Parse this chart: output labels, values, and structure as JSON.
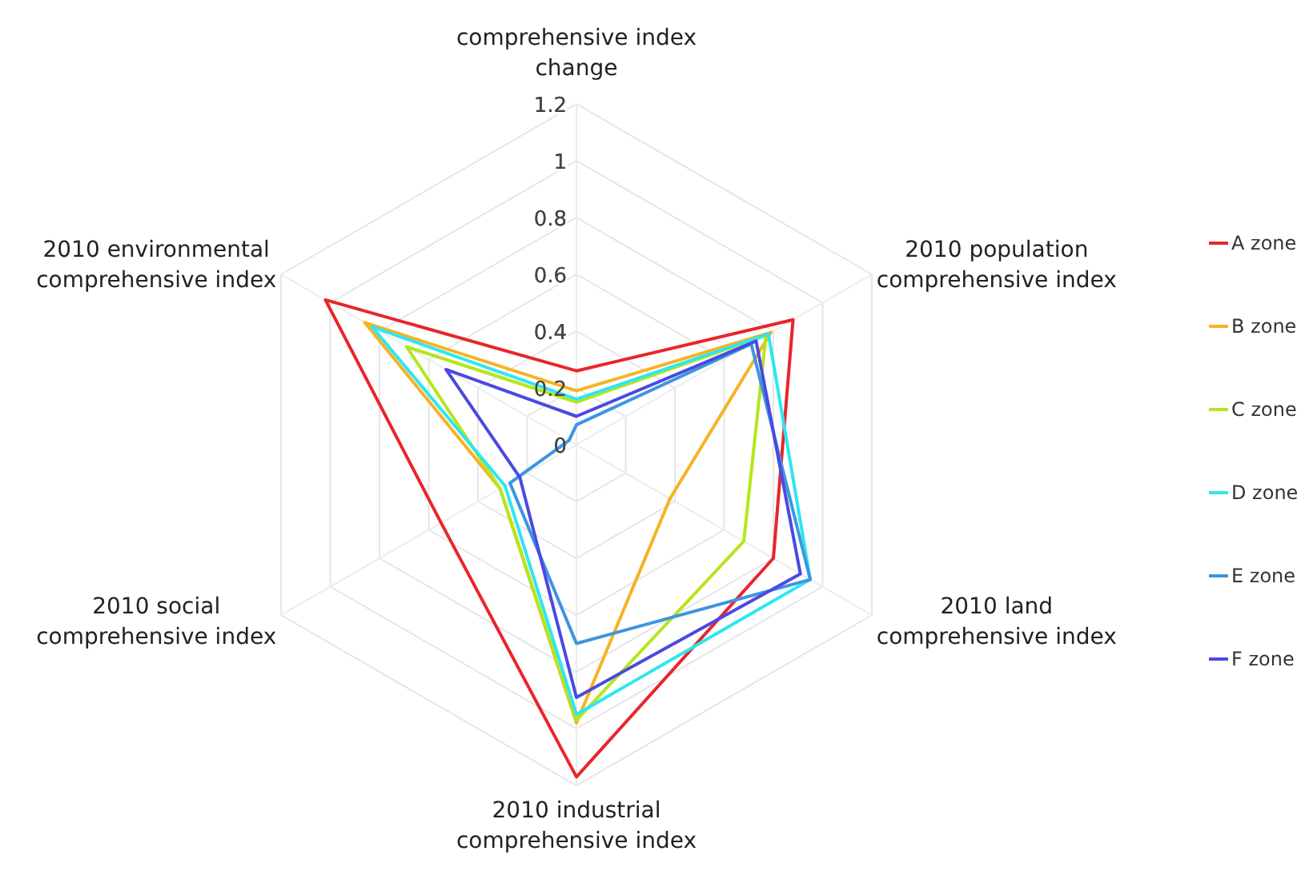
{
  "chart_data": {
    "type": "radar",
    "categories": [
      "comprehensive index\nchange",
      "2010 population\ncomprehensive index",
      "2010 land\ncomprehensive index",
      "2010 industrial\ncomprehensive index",
      "2010 social\ncomprehensive index",
      "2010 environmental\ncomprehensive index"
    ],
    "series": [
      {
        "name": "A zone",
        "color": "#e8262a",
        "values": [
          0.26,
          0.88,
          0.8,
          1.17,
          0.55,
          1.02
        ]
      },
      {
        "name": "B zone",
        "color": "#f5b324",
        "values": [
          0.19,
          0.79,
          0.38,
          0.98,
          0.31,
          0.86
        ]
      },
      {
        "name": "C zone",
        "color": "#b5e61d",
        "values": [
          0.15,
          0.77,
          0.68,
          0.97,
          0.31,
          0.69
        ]
      },
      {
        "name": "D zone",
        "color": "#2ee6f0",
        "values": [
          0.16,
          0.78,
          0.95,
          0.95,
          0.29,
          0.83
        ]
      },
      {
        "name": "E zone",
        "color": "#3d95e0",
        "values": [
          0.07,
          0.71,
          0.95,
          0.7,
          0.27,
          0.03
        ]
      },
      {
        "name": "F zone",
        "color": "#4a4ae0",
        "values": [
          0.1,
          0.73,
          0.91,
          0.89,
          0.23,
          0.53
        ]
      }
    ],
    "ylim": [
      0,
      1.2
    ],
    "yticks": [
      0,
      0.2,
      0.4,
      0.6,
      0.8,
      1,
      1.2
    ],
    "legend": "right",
    "grid": true
  }
}
